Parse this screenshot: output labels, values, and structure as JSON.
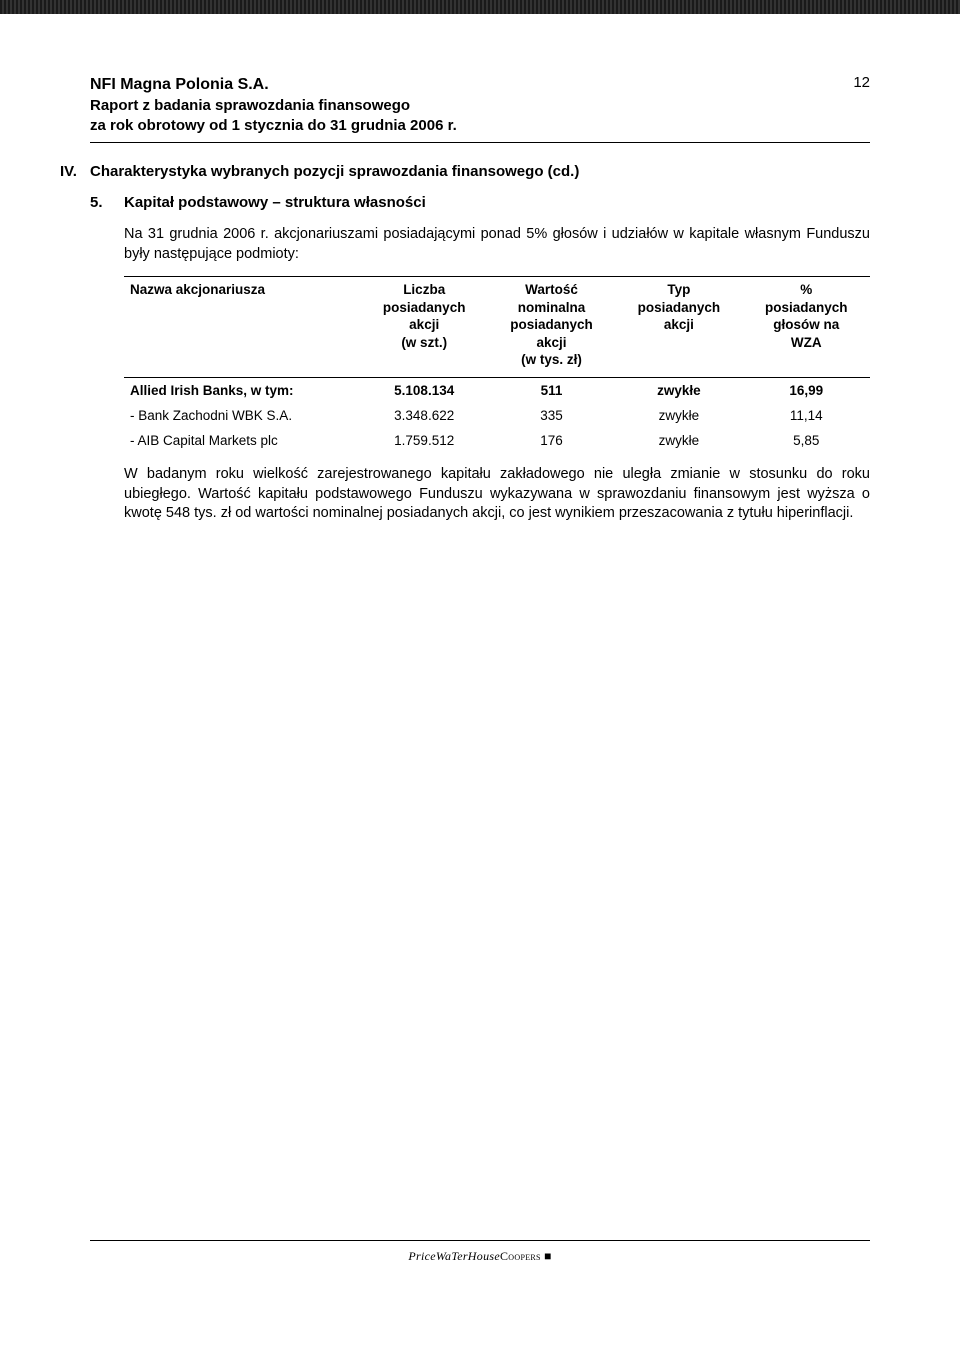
{
  "header": {
    "company": "NFI Magna Polonia S.A.",
    "line1": "Raport z badania sprawozdania finansowego",
    "line2": "za rok obrotowy od 1 stycznia do 31 grudnia 2006 r.",
    "page_number": "12"
  },
  "section": {
    "outer_num": "IV.",
    "outer_title": "Charakterystyka wybranych pozycji sprawozdania finansowego (cd.)",
    "inner_num": "5.",
    "inner_title": "Kapitał podstawowy – struktura własności",
    "intro": "Na 31 grudnia 2006 r. akcjonariuszami posiadającymi ponad 5% głosów i udziałów w kapitale własnym Funduszu były następujące podmioty:",
    "outro": "W badanym roku wielkość zarejestrowanego kapitału zakładowego nie uległa zmianie w stosunku do roku ubiegłego. Wartość kapitału podstawowego Funduszu wykazywana w sprawozdaniu finansowym jest wyższa o kwotę 548 tys. zł od wartości nominalnej posiadanych akcji, co jest wynikiem przeszacowania z tytułu hiperinflacji."
  },
  "table": {
    "columns": [
      "Nazwa akcjonariusza",
      "Liczba posiadanych akcji\n(w szt.)",
      "Wartość nominalna posiadanych akcji\n(w tys. zł)",
      "Typ posiadanych akcji",
      "% posiadanych głosów na WZA"
    ],
    "rows": [
      {
        "name": "Allied Irish Banks, w tym:",
        "shares": "5.108.134",
        "value": "511",
        "type": "zwykłe",
        "pct": "16,99",
        "bold": true
      },
      {
        "name": "- Bank Zachodni WBK S.A.",
        "shares": "3.348.622",
        "value": "335",
        "type": "zwykłe",
        "pct": "11,14",
        "bold": false
      },
      {
        "name": "- AIB Capital Markets plc",
        "shares": "1.759.512",
        "value": "176",
        "type": "zwykłe",
        "pct": "5,85",
        "bold": false
      }
    ]
  },
  "footer": {
    "brand_left": "PriceWaTerHouse",
    "brand_right": "Coopers"
  }
}
